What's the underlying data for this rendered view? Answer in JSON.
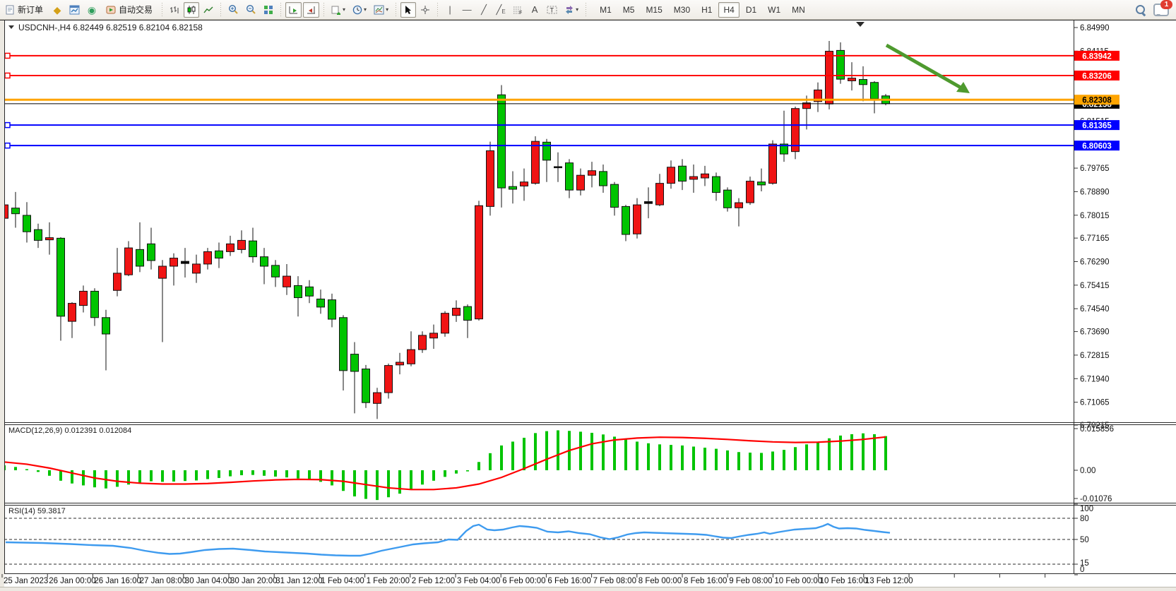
{
  "toolbar": {
    "new_order_label": "新订单",
    "autotrading_label": "自动交易",
    "timeframes": [
      "M1",
      "M5",
      "M15",
      "M30",
      "H1",
      "H4",
      "D1",
      "W1",
      "MN"
    ],
    "selected_timeframe": "H4",
    "notification_count": "1",
    "glyphs": {
      "market_watch": "◆",
      "navigator": "◉",
      "add_indicator": "+",
      "text_a": "A",
      "text_label": "T",
      "vline": "|",
      "hline": "—",
      "trendline": "╱",
      "channel": "╱",
      "fibo": "F",
      "caret": "▾"
    }
  },
  "chart": {
    "title_line": "USDCNH-,H4  6.82449 6.82519 6.82104 6.82158",
    "symbol": "USDCNH-",
    "period": "H4"
  },
  "chart_data": {
    "type": "candlestick",
    "symbol": "USDCNH",
    "timeframe": "H4",
    "quote": {
      "open": 6.82449,
      "high": 6.82519,
      "low": 6.82104,
      "close": 6.82158
    },
    "colors": {
      "bull": "#f01414",
      "bear": "#00c400",
      "neutral": "#000000",
      "signal": "#ff0000",
      "rsi": "#3e9bef",
      "arrow": "#4e9a2e"
    },
    "price_axis": {
      "max_label_price": 6.8499,
      "min_label_price": 6.70215,
      "ticks": [
        "6.84990",
        "6.84115",
        "6.83240",
        "6.82365",
        "6.81515",
        "6.80640",
        "6.79765",
        "6.78890",
        "6.78015",
        "6.77165",
        "6.76290",
        "6.75415",
        "6.74540",
        "6.73690",
        "6.72815",
        "6.71940",
        "6.71065",
        "6.70215"
      ]
    },
    "hlines": [
      {
        "price": 6.82158,
        "label": "6.82158",
        "color": "#000000",
        "text_color": "#ffffff",
        "width": 1,
        "handle": false,
        "name": "current-price-line"
      },
      {
        "price": 6.83942,
        "label": "6.83942",
        "color": "#ff0000",
        "text_color": "#ffffff",
        "width": 2,
        "handle": true,
        "name": "resistance-line-1"
      },
      {
        "price": 6.83206,
        "label": "6.83206",
        "color": "#ff0000",
        "text_color": "#ffffff",
        "width": 2,
        "handle": true,
        "name": "resistance-line-2"
      },
      {
        "price": 6.82308,
        "label": "6.82308",
        "color": "#ffa500",
        "text_color": "#000000",
        "width": 3,
        "handle": false,
        "name": "pivot-line"
      },
      {
        "price": 6.81365,
        "label": "6.81365",
        "color": "#0000ff",
        "text_color": "#ffffff",
        "width": 2,
        "handle": true,
        "name": "support-line-1"
      },
      {
        "price": 6.80603,
        "label": "6.80603",
        "color": "#0000ff",
        "text_color": "#ffffff",
        "width": 2,
        "handle": true,
        "name": "support-line-2"
      }
    ],
    "time_axis": [
      "25 Jan 2023",
      "26 Jan 00:00",
      "26 Jan 16:00",
      "27 Jan 08:00",
      "30 Jan 04:00",
      "30 Jan 20:00",
      "31 Jan 12:00",
      "1 Feb 04:00",
      "1 Feb 20:00",
      "2 Feb 12:00",
      "3 Feb 04:00",
      "6 Feb 00:00",
      "6 Feb 16:00",
      "7 Feb 08:00",
      "8 Feb 00:00",
      "8 Feb 16:00",
      "9 Feb 08:00",
      "10 Feb 00:00",
      "10 Feb 16:00",
      "13 Feb 12:00"
    ],
    "candles_format": "[bodyTop, bodyBottom, high, low, direction u=bull(red) d=bear(green) n=doji(black)]",
    "candles": [
      [
        6.784,
        6.779,
        6.789,
        6.776,
        "u"
      ],
      [
        6.7828,
        6.7807,
        6.7888,
        6.7755,
        "d"
      ],
      [
        6.7801,
        6.774,
        6.785,
        6.77,
        "d"
      ],
      [
        6.7748,
        6.7708,
        6.777,
        6.768,
        "d"
      ],
      [
        6.7718,
        6.771,
        6.7775,
        6.7655,
        "u"
      ],
      [
        6.7716,
        6.7426,
        6.772,
        6.7335,
        "d"
      ],
      [
        6.7474,
        6.7407,
        6.7478,
        6.7345,
        "u"
      ],
      [
        6.7519,
        6.7466,
        6.754,
        6.744,
        "u"
      ],
      [
        6.7519,
        6.7421,
        6.753,
        6.739,
        "d"
      ],
      [
        6.7421,
        6.736,
        6.745,
        6.7225,
        "d"
      ],
      [
        6.7586,
        6.7522,
        6.768,
        6.75,
        "u"
      ],
      [
        6.768,
        6.758,
        6.7705,
        6.7575,
        "u"
      ],
      [
        6.7674,
        6.7612,
        6.7775,
        6.759,
        "d"
      ],
      [
        6.7695,
        6.7633,
        6.7755,
        6.76,
        "d"
      ],
      [
        6.7612,
        6.7567,
        6.7635,
        6.733,
        "u"
      ],
      [
        6.7642,
        6.7612,
        6.766,
        6.754,
        "u"
      ],
      [
        6.763,
        6.7622,
        6.768,
        6.757,
        "n"
      ],
      [
        6.762,
        6.7586,
        6.7655,
        6.755,
        "u"
      ],
      [
        6.7666,
        6.762,
        6.768,
        6.76,
        "u"
      ],
      [
        6.7669,
        6.7642,
        6.77,
        6.7605,
        "d"
      ],
      [
        6.7695,
        6.7666,
        6.7725,
        6.765,
        "u"
      ],
      [
        6.7708,
        6.7674,
        6.7745,
        6.766,
        "u"
      ],
      [
        6.7706,
        6.7647,
        6.7755,
        6.7625,
        "d"
      ],
      [
        6.7647,
        6.7612,
        6.768,
        6.7545,
        "d"
      ],
      [
        6.7615,
        6.7572,
        6.7635,
        6.7535,
        "d"
      ],
      [
        6.7575,
        6.7535,
        6.762,
        6.7505,
        "u"
      ],
      [
        6.754,
        6.7495,
        6.7575,
        6.7425,
        "d"
      ],
      [
        6.7535,
        6.7501,
        6.756,
        6.7475,
        "d"
      ],
      [
        6.749,
        6.746,
        6.7525,
        6.7435,
        "d"
      ],
      [
        6.7487,
        6.7415,
        6.751,
        6.7385,
        "d"
      ],
      [
        6.7421,
        6.7224,
        6.743,
        6.715,
        "d"
      ],
      [
        6.7285,
        6.7221,
        6.733,
        6.7065,
        "d"
      ],
      [
        6.723,
        6.7105,
        6.7245,
        6.7085,
        "d"
      ],
      [
        6.7142,
        6.7102,
        6.716,
        6.7044,
        "u"
      ],
      [
        6.7243,
        6.7142,
        6.725,
        6.712,
        "u"
      ],
      [
        6.7255,
        6.7245,
        6.729,
        6.721,
        "u"
      ],
      [
        6.7302,
        6.7249,
        6.737,
        6.724,
        "u"
      ],
      [
        6.7355,
        6.7302,
        6.737,
        6.729,
        "u"
      ],
      [
        6.7363,
        6.7345,
        6.7395,
        6.7305,
        "u"
      ],
      [
        6.7437,
        6.7363,
        6.7445,
        6.735,
        "u"
      ],
      [
        6.7456,
        6.7429,
        6.7485,
        6.7405,
        "u"
      ],
      [
        6.7462,
        6.7411,
        6.747,
        6.7345,
        "d"
      ],
      [
        6.7837,
        6.7416,
        6.7855,
        6.741,
        "u"
      ],
      [
        6.8041,
        6.7834,
        6.8075,
        6.78,
        "u"
      ],
      [
        6.8249,
        6.7903,
        6.8285,
        6.783,
        "d"
      ],
      [
        6.7908,
        6.7898,
        6.7965,
        6.7845,
        "d"
      ],
      [
        6.7925,
        6.791,
        6.7975,
        6.7855,
        "u"
      ],
      [
        6.8076,
        6.792,
        6.8095,
        6.7915,
        "u"
      ],
      [
        6.8073,
        6.8006,
        6.8085,
        6.7925,
        "d"
      ],
      [
        6.7982,
        6.7978,
        6.8035,
        6.7925,
        "n"
      ],
      [
        6.7996,
        6.7895,
        6.801,
        6.7865,
        "d"
      ],
      [
        6.795,
        6.7895,
        6.7975,
        6.7875,
        "u"
      ],
      [
        6.7967,
        6.795,
        6.8,
        6.7905,
        "u"
      ],
      [
        6.7964,
        6.7911,
        6.799,
        6.7885,
        "d"
      ],
      [
        6.7916,
        6.7831,
        6.7925,
        6.78,
        "d"
      ],
      [
        6.7834,
        6.773,
        6.784,
        6.7705,
        "d"
      ],
      [
        6.784,
        6.7732,
        6.7865,
        6.7715,
        "u"
      ],
      [
        6.7852,
        6.7845,
        6.7905,
        6.779,
        "n"
      ],
      [
        6.792,
        6.784,
        6.7955,
        6.7835,
        "u"
      ],
      [
        6.798,
        6.792,
        6.8005,
        6.79,
        "u"
      ],
      [
        6.7984,
        6.7928,
        6.801,
        6.7895,
        "d"
      ],
      [
        6.7945,
        6.7935,
        6.799,
        6.7885,
        "u"
      ],
      [
        6.7955,
        6.794,
        6.7985,
        6.791,
        "u"
      ],
      [
        6.7945,
        6.7886,
        6.796,
        6.7855,
        "d"
      ],
      [
        6.7895,
        6.7829,
        6.7905,
        6.7815,
        "d"
      ],
      [
        6.7848,
        6.7829,
        6.7865,
        6.776,
        "u"
      ],
      [
        6.7928,
        6.7848,
        6.7945,
        6.784,
        "u"
      ],
      [
        6.7925,
        6.7914,
        6.7975,
        6.789,
        "d"
      ],
      [
        6.8066,
        6.792,
        6.808,
        6.7915,
        "u"
      ],
      [
        6.8066,
        6.8029,
        6.819,
        6.8,
        "d"
      ],
      [
        6.8198,
        6.8038,
        6.8205,
        6.801,
        "u"
      ],
      [
        6.8219,
        6.8198,
        6.8246,
        6.812,
        "u"
      ],
      [
        6.8267,
        6.8224,
        6.8295,
        6.8185,
        "u"
      ],
      [
        6.8411,
        6.8215,
        6.8449,
        6.8195,
        "u"
      ],
      [
        6.8414,
        6.8307,
        6.8444,
        6.829,
        "d"
      ],
      [
        6.8311,
        6.8301,
        6.837,
        6.8265,
        "u"
      ],
      [
        6.8306,
        6.8287,
        6.8355,
        6.8225,
        "d"
      ],
      [
        6.8295,
        6.8234,
        6.83,
        6.818,
        "d"
      ],
      [
        6.8245,
        6.8216,
        6.8252,
        6.821,
        "d"
      ]
    ],
    "macd": {
      "title_line": "MACD(12,26,9) 0.012391 0.012084",
      "macd_value": 0.012391,
      "signal_value": 0.012084,
      "axis": [
        "0.015856",
        "0.00",
        "-0.01076"
      ],
      "histogram": [
        0.0018,
        0.0012,
        0.0004,
        -0.0006,
        -0.002,
        -0.0038,
        -0.0048,
        -0.0055,
        -0.0062,
        -0.0066,
        -0.006,
        -0.0052,
        -0.0045,
        -0.004,
        -0.0042,
        -0.0041,
        -0.0039,
        -0.0037,
        -0.0032,
        -0.0028,
        -0.0022,
        -0.0018,
        -0.0017,
        -0.002,
        -0.0023,
        -0.0026,
        -0.003,
        -0.0034,
        -0.0042,
        -0.0055,
        -0.0075,
        -0.0095,
        -0.0104,
        -0.0108,
        -0.0098,
        -0.0085,
        -0.0068,
        -0.0052,
        -0.0038,
        -0.0024,
        -0.0012,
        -0.0004,
        0.003,
        0.0062,
        0.009,
        0.0104,
        0.0118,
        0.0135,
        0.0142,
        0.0145,
        0.0143,
        0.014,
        0.0136,
        0.013,
        0.0122,
        0.0112,
        0.0104,
        0.0098,
        0.0094,
        0.0092,
        0.009,
        0.0086,
        0.0082,
        0.0078,
        0.0072,
        0.0066,
        0.0064,
        0.0063,
        0.0068,
        0.0074,
        0.0084,
        0.0094,
        0.0102,
        0.0116,
        0.0126,
        0.0131,
        0.0134,
        0.0131,
        0.0124
      ],
      "signal": [
        [
          0,
          0.003
        ],
        [
          2,
          0.0022
        ],
        [
          4,
          0.0008
        ],
        [
          6,
          -0.001
        ],
        [
          8,
          -0.0028
        ],
        [
          10,
          -0.004
        ],
        [
          12,
          -0.0047
        ],
        [
          14,
          -0.005
        ],
        [
          16,
          -0.005
        ],
        [
          18,
          -0.0048
        ],
        [
          20,
          -0.0044
        ],
        [
          22,
          -0.0039
        ],
        [
          24,
          -0.0035
        ],
        [
          26,
          -0.0033
        ],
        [
          28,
          -0.0034
        ],
        [
          30,
          -0.004
        ],
        [
          32,
          -0.0052
        ],
        [
          34,
          -0.0064
        ],
        [
          36,
          -0.007
        ],
        [
          38,
          -0.007
        ],
        [
          40,
          -0.0064
        ],
        [
          42,
          -0.005
        ],
        [
          44,
          -0.0026
        ],
        [
          46,
          0.0006
        ],
        [
          48,
          0.004
        ],
        [
          50,
          0.0072
        ],
        [
          52,
          0.0096
        ],
        [
          54,
          0.011
        ],
        [
          56,
          0.0117
        ],
        [
          58,
          0.012
        ],
        [
          60,
          0.0119
        ],
        [
          62,
          0.0116
        ],
        [
          64,
          0.0112
        ],
        [
          66,
          0.0107
        ],
        [
          68,
          0.0103
        ],
        [
          70,
          0.0101
        ],
        [
          72,
          0.0102
        ],
        [
          74,
          0.0106
        ],
        [
          76,
          0.0112
        ],
        [
          78,
          0.0121
        ]
      ]
    },
    "rsi": {
      "title_line": "RSI(14) 59.3817",
      "value": 59.3817,
      "levels": [
        80,
        50,
        15
      ],
      "axis": [
        "100",
        "80",
        "50",
        "15",
        "0"
      ],
      "line": [
        [
          8,
          46
        ],
        [
          60,
          45
        ],
        [
          100,
          43.5
        ],
        [
          130,
          42
        ],
        [
          160,
          41
        ],
        [
          185,
          38
        ],
        [
          205,
          34
        ],
        [
          225,
          31
        ],
        [
          240,
          29.5
        ],
        [
          255,
          30
        ],
        [
          270,
          32
        ],
        [
          290,
          35
        ],
        [
          310,
          36.5
        ],
        [
          330,
          37
        ],
        [
          355,
          35
        ],
        [
          375,
          33
        ],
        [
          395,
          32
        ],
        [
          415,
          31
        ],
        [
          435,
          30
        ],
        [
          455,
          28.5
        ],
        [
          475,
          27.5
        ],
        [
          495,
          27
        ],
        [
          510,
          27
        ],
        [
          525,
          30
        ],
        [
          540,
          34
        ],
        [
          555,
          37
        ],
        [
          570,
          40
        ],
        [
          585,
          43
        ],
        [
          600,
          44.5
        ],
        [
          620,
          46
        ],
        [
          635,
          50
        ],
        [
          648,
          49.5
        ],
        [
          660,
          62
        ],
        [
          670,
          69
        ],
        [
          678,
          71
        ],
        [
          690,
          64
        ],
        [
          700,
          63
        ],
        [
          712,
          64
        ],
        [
          725,
          67
        ],
        [
          736,
          69
        ],
        [
          748,
          68
        ],
        [
          760,
          66.5
        ],
        [
          775,
          61
        ],
        [
          790,
          60
        ],
        [
          805,
          61.5
        ],
        [
          820,
          59
        ],
        [
          835,
          57.5
        ],
        [
          850,
          53
        ],
        [
          863,
          50.5
        ],
        [
          875,
          53
        ],
        [
          888,
          57
        ],
        [
          900,
          59
        ],
        [
          912,
          60
        ],
        [
          925,
          59.5
        ],
        [
          940,
          59
        ],
        [
          955,
          58.5
        ],
        [
          970,
          58
        ],
        [
          985,
          57.5
        ],
        [
          1000,
          56.5
        ],
        [
          1012,
          54.5
        ],
        [
          1025,
          52.5
        ],
        [
          1035,
          52
        ],
        [
          1048,
          54.5
        ],
        [
          1060,
          56.5
        ],
        [
          1072,
          58
        ],
        [
          1082,
          60
        ],
        [
          1090,
          58
        ],
        [
          1100,
          60
        ],
        [
          1112,
          62
        ],
        [
          1125,
          64
        ],
        [
          1140,
          65
        ],
        [
          1155,
          66
        ],
        [
          1165,
          69
        ],
        [
          1172,
          72
        ],
        [
          1180,
          68
        ],
        [
          1188,
          65.5
        ],
        [
          1200,
          66
        ],
        [
          1212,
          65.5
        ],
        [
          1225,
          63.5
        ],
        [
          1238,
          62
        ],
        [
          1250,
          60.5
        ],
        [
          1260,
          59.4
        ]
      ]
    },
    "annotation_arrow": {
      "from": [
        1255,
        64
      ],
      "to": [
        1362,
        125
      ],
      "tip": [
        1373,
        132
      ],
      "color": "#4e9a2e"
    }
  }
}
